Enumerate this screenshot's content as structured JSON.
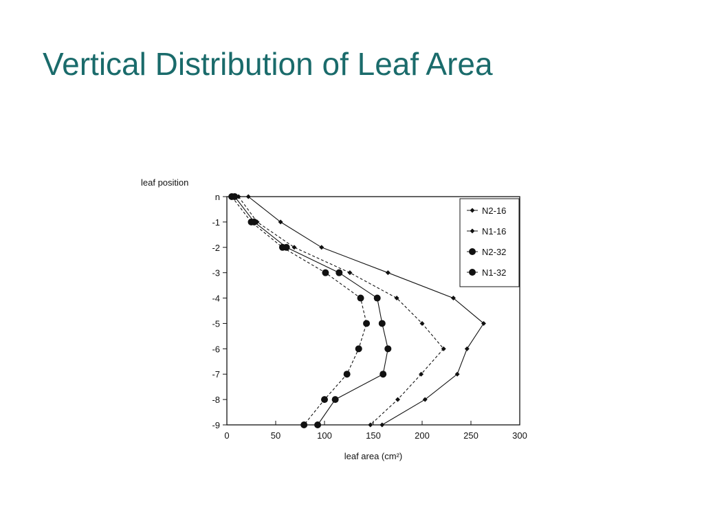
{
  "slide": {
    "title": "Vertical Distribution of Leaf Area"
  },
  "colors": {
    "title": "#1a6b6b",
    "ink": "#111111"
  },
  "chart_data": {
    "type": "line",
    "title": "",
    "xlabel": "leaf area (cm²)",
    "ylabel": "leaf position",
    "xlim": [
      0,
      300
    ],
    "xticks": [
      0,
      50,
      100,
      150,
      200,
      250,
      300
    ],
    "ylim": [
      -9,
      0
    ],
    "yticks": [
      {
        "value": 0,
        "label": "n"
      },
      {
        "value": -1,
        "label": "-1"
      },
      {
        "value": -2,
        "label": "-2"
      },
      {
        "value": -3,
        "label": "-3"
      },
      {
        "value": -4,
        "label": "-4"
      },
      {
        "value": -5,
        "label": "-5"
      },
      {
        "value": -6,
        "label": "-6"
      },
      {
        "value": -7,
        "label": "-7"
      },
      {
        "value": -8,
        "label": "-8"
      },
      {
        "value": -9,
        "label": "-9"
      }
    ],
    "grid": false,
    "legend_position": "top-right",
    "series": [
      {
        "name": "N2-16",
        "line": "solid",
        "marker": "diamond-small",
        "points": [
          [
            22,
            0
          ],
          [
            55,
            -1
          ],
          [
            97,
            -2
          ],
          [
            165,
            -3
          ],
          [
            232,
            -4
          ],
          [
            263,
            -5
          ],
          [
            246,
            -6
          ],
          [
            236,
            -7
          ],
          [
            203,
            -8
          ],
          [
            159,
            -9
          ]
        ]
      },
      {
        "name": "N1-16",
        "line": "dashed",
        "marker": "diamond-small",
        "points": [
          [
            12,
            0
          ],
          [
            31,
            -1
          ],
          [
            69,
            -2
          ],
          [
            126,
            -3
          ],
          [
            174,
            -4
          ],
          [
            200,
            -5
          ],
          [
            222,
            -6
          ],
          [
            199,
            -7
          ],
          [
            175,
            -8
          ],
          [
            147,
            -9
          ]
        ]
      },
      {
        "name": "N2-32",
        "line": "solid",
        "marker": "circle",
        "points": [
          [
            8,
            0
          ],
          [
            28,
            -1
          ],
          [
            61,
            -2
          ],
          [
            115,
            -3
          ],
          [
            154,
            -4
          ],
          [
            159,
            -5
          ],
          [
            165,
            -6
          ],
          [
            160,
            -7
          ],
          [
            111,
            -8
          ],
          [
            93,
            -9
          ]
        ]
      },
      {
        "name": "N1-32",
        "line": "dashed",
        "marker": "circle",
        "points": [
          [
            5,
            0
          ],
          [
            25,
            -1
          ],
          [
            57,
            -2
          ],
          [
            101,
            -3
          ],
          [
            137,
            -4
          ],
          [
            143,
            -5
          ],
          [
            135,
            -6
          ],
          [
            123,
            -7
          ],
          [
            100,
            -8
          ],
          [
            79,
            -9
          ]
        ]
      }
    ]
  }
}
